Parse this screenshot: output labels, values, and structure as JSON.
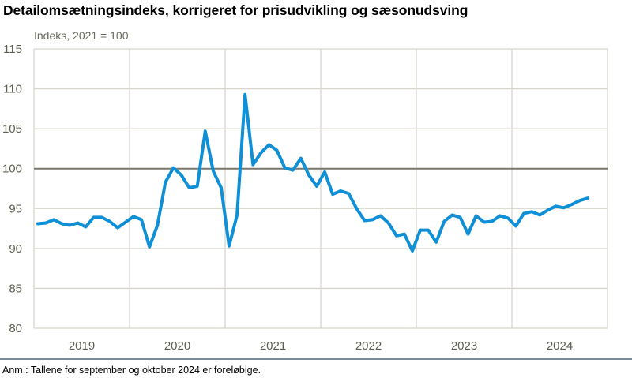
{
  "title": "Detailomsætningsindeks, korrigeret for prisudvikling og sæsonudsving",
  "note": "Anm.: Tallene for september og oktober 2024 er foreløbige.",
  "colors": {
    "line": "#0f8fd6",
    "grid": "#d8d6cc",
    "reference": "#7a776a",
    "tick_text": "#5f5e52"
  },
  "chart_data": {
    "type": "line",
    "title": "Detailomsætningsindeks, korrigeret for prisudvikling og sæsonudsving",
    "xlabel": "",
    "ylabel": "Indeks, 2021 = 100",
    "ylim": [
      80,
      115
    ],
    "yticks": [
      80,
      85,
      90,
      95,
      100,
      105,
      110,
      115
    ],
    "reference_line": 100,
    "grid": true,
    "legend": null,
    "categories": [
      "2019",
      "2020",
      "2021",
      "2022",
      "2023",
      "2024"
    ],
    "x_frequency": "monthly",
    "x_start": "2019-01",
    "x_end": "2024-10",
    "series": [
      {
        "name": "Detailomsætningsindeks",
        "values": [
          93.1,
          93.2,
          93.6,
          93.1,
          92.9,
          93.2,
          92.7,
          93.9,
          93.9,
          93.4,
          92.6,
          93.3,
          94.0,
          93.6,
          90.2,
          92.9,
          98.3,
          100.1,
          99.2,
          97.6,
          97.8,
          104.7,
          99.7,
          97.6,
          90.3,
          94.2,
          109.3,
          100.5,
          102.0,
          103.0,
          102.3,
          100.1,
          99.8,
          101.3,
          99.2,
          97.8,
          99.6,
          96.8,
          97.2,
          96.9,
          95.0,
          93.5,
          93.6,
          94.1,
          93.2,
          91.6,
          91.8,
          89.7,
          92.3,
          92.3,
          90.8,
          93.4,
          94.2,
          93.9,
          91.8,
          94.1,
          93.3,
          93.4,
          94.1,
          93.8,
          92.8,
          94.4,
          94.6,
          94.2,
          94.8,
          95.3,
          95.1,
          95.5,
          96.0,
          96.3
        ]
      }
    ]
  }
}
